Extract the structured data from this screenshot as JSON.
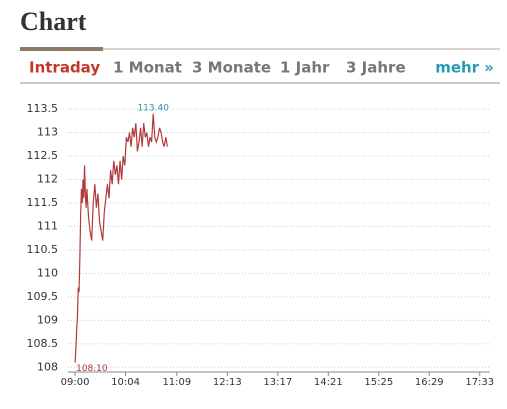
{
  "header": {
    "title": "Chart"
  },
  "tabs": [
    "Intraday",
    "1 Monat",
    "3 Monate",
    "1 Jahr",
    "3 Jahre"
  ],
  "more": "mehr »",
  "chart_data": {
    "type": "line",
    "x": [
      540,
      541,
      542,
      543,
      544,
      545,
      546,
      547,
      548,
      549,
      550,
      551,
      552,
      553,
      554,
      555,
      557,
      559,
      561,
      563,
      565,
      567,
      569,
      571,
      573,
      575,
      577,
      579,
      581,
      583,
      585,
      587,
      589,
      591,
      593,
      595,
      597,
      599,
      601,
      603,
      605,
      607,
      609,
      611,
      613,
      615,
      617,
      619,
      621,
      623,
      625,
      627,
      629,
      631,
      633,
      635,
      637,
      639,
      641,
      643,
      645,
      647,
      649,
      651,
      653,
      655,
      657
    ],
    "series": [
      {
        "color": "#b03a3a",
        "values": [
          108.1,
          108.4,
          108.8,
          109.1,
          109.7,
          109.6,
          110.3,
          111.2,
          111.8,
          111.5,
          112.0,
          111.6,
          112.3,
          111.7,
          111.4,
          111.8,
          111.2,
          110.9,
          110.7,
          111.5,
          111.9,
          111.4,
          111.7,
          111.1,
          110.9,
          110.7,
          111.3,
          111.6,
          111.9,
          111.6,
          112.2,
          111.9,
          112.4,
          112.1,
          112.3,
          111.9,
          112.4,
          112.0,
          112.5,
          112.3,
          112.9,
          112.8,
          113.0,
          112.7,
          113.1,
          112.9,
          113.2,
          112.6,
          112.8,
          113.1,
          112.7,
          113.2,
          112.9,
          113.0,
          112.7,
          112.9,
          112.8,
          113.4,
          112.9,
          112.8,
          112.9,
          113.1,
          113.0,
          112.8,
          112.7,
          112.9,
          112.7
        ]
      }
    ],
    "annotations": [
      {
        "text": "113.40",
        "x": 639,
        "y": 113.4,
        "color": "#2a8fb0"
      },
      {
        "text": "108.10",
        "x": 540,
        "y": 108.1,
        "color": "#b03a3a"
      }
    ],
    "xlim": [
      531,
      1066
    ],
    "ylim": [
      107.9,
      113.8
    ],
    "xticks": [
      {
        "value": 540,
        "label": "09:00"
      },
      {
        "value": 604,
        "label": "10:04"
      },
      {
        "value": 669,
        "label": "11:09"
      },
      {
        "value": 733,
        "label": "12:13"
      },
      {
        "value": 797,
        "label": "13:17"
      },
      {
        "value": 861,
        "label": "14:21"
      },
      {
        "value": 925,
        "label": "15:25"
      },
      {
        "value": 989,
        "label": "16:29"
      },
      {
        "value": 1053,
        "label": "17:33"
      }
    ],
    "yticks": [
      108,
      108.5,
      109,
      109.5,
      110,
      110.5,
      111,
      111.5,
      112,
      112.5,
      113,
      113.5
    ],
    "grid": true
  }
}
